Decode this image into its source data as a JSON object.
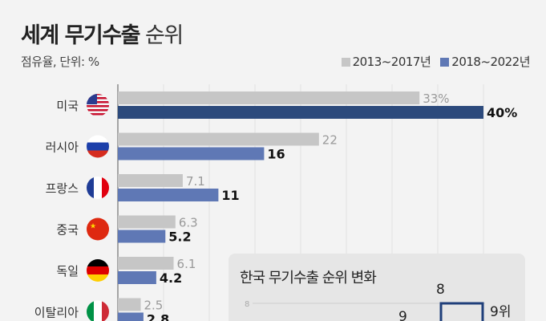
{
  "title_bold": "세계 무기수출",
  "title_light": "순위",
  "subtitle": "점유율, 단위: %",
  "chart_data": {
    "type": "bar",
    "orientation": "horizontal",
    "categories": [
      "미국",
      "러시아",
      "프랑스",
      "중국",
      "독일",
      "이탈리아"
    ],
    "series": [
      {
        "name": "2013~2017년",
        "color": "#c6c6c6",
        "values": [
          33,
          22,
          7.1,
          6.3,
          6.1,
          2.5
        ],
        "labels": [
          "33%",
          "22",
          "7.1",
          "6.3",
          "6.1",
          "2.5"
        ]
      },
      {
        "name": "2018~2022년",
        "color": "#5f78b5",
        "values": [
          40,
          16,
          11,
          5.2,
          4.2,
          2.8
        ],
        "labels": [
          "40%",
          "16",
          "11",
          "5.2",
          "4.2",
          "2.8"
        ]
      }
    ],
    "highlight_color": "#2c4a7c",
    "xlim": [
      0,
      40
    ],
    "grid": true,
    "legend": "top-right",
    "unit": "%"
  },
  "flags": [
    "us-flag",
    "russia-flag",
    "france-flag",
    "china-flag",
    "germany-flag",
    "italy-flag"
  ],
  "inset": {
    "title": "한국 무기수출 순위 변화",
    "axis_tick": "8",
    "point_labels": [
      "9",
      "8"
    ],
    "end_label": "9위"
  }
}
